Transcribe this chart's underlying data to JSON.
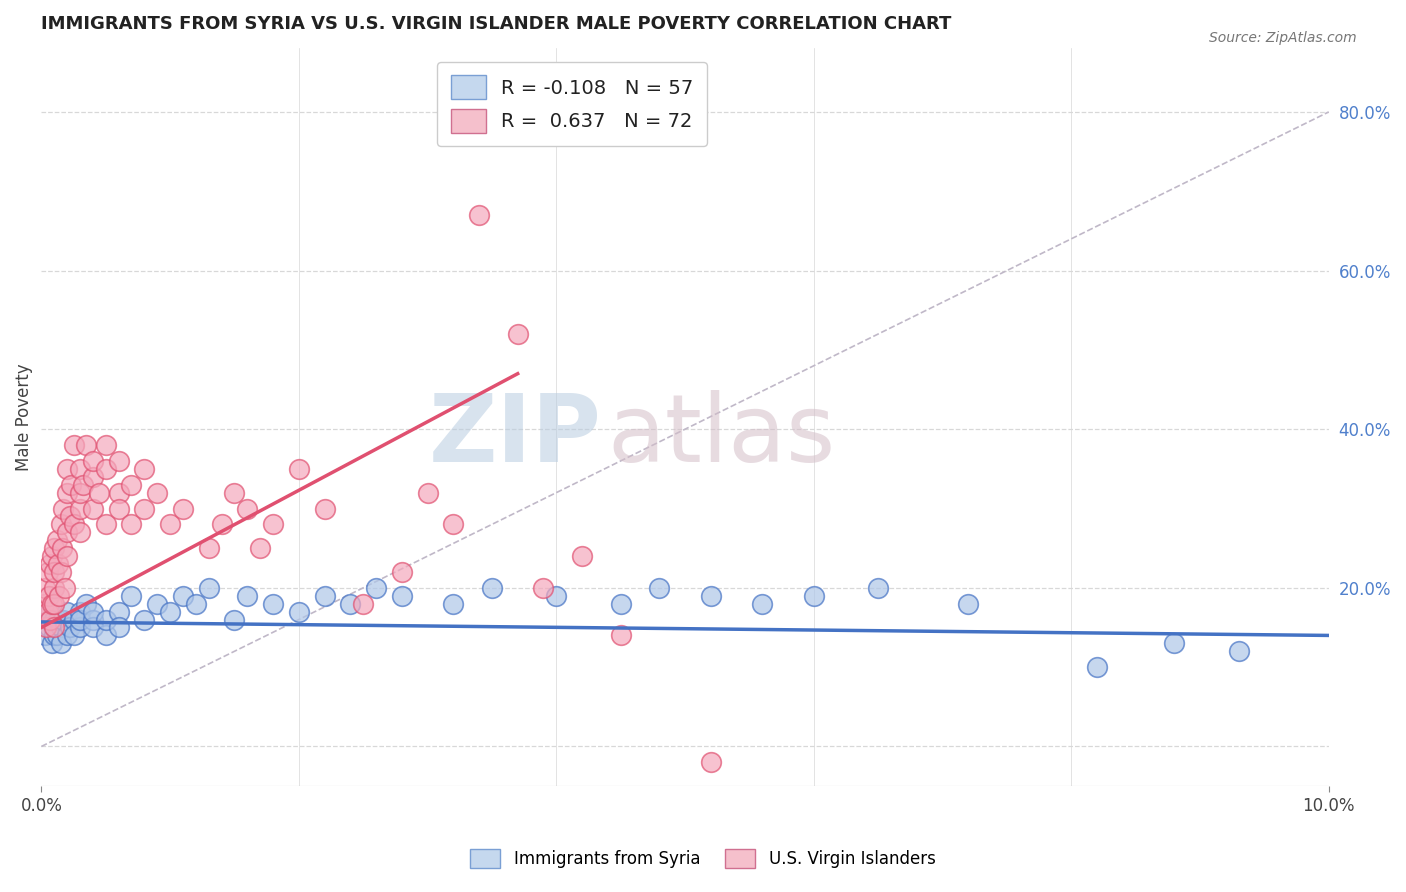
{
  "title": "IMMIGRANTS FROM SYRIA VS U.S. VIRGIN ISLANDER MALE POVERTY CORRELATION CHART",
  "source": "Source: ZipAtlas.com",
  "ylabel": "Male Poverty",
  "xlim": [
    0.0,
    0.1
  ],
  "ylim": [
    -0.05,
    0.88
  ],
  "color_blue": "#aec6e8",
  "color_pink": "#f4a8bc",
  "color_blue_line": "#4472c4",
  "color_pink_line": "#e05070",
  "color_dashed": "#c0b8c8",
  "color_grid": "#d8d8d8",
  "background_color": "#ffffff",
  "watermark_zip_color": "#c8d8e8",
  "watermark_atlas_color": "#d8c8d0",
  "right_ytick_color": "#5080cc",
  "legend_blue_r": "R = -0.108",
  "legend_blue_n": "N = 57",
  "legend_pink_r": "R =  0.637",
  "legend_pink_n": "N = 72",
  "blue_x": [
    0.0003,
    0.0005,
    0.0006,
    0.0007,
    0.0008,
    0.001,
    0.001,
    0.001,
    0.0012,
    0.0013,
    0.0015,
    0.0015,
    0.0017,
    0.002,
    0.002,
    0.0022,
    0.0025,
    0.0025,
    0.003,
    0.003,
    0.003,
    0.0035,
    0.004,
    0.004,
    0.004,
    0.005,
    0.005,
    0.006,
    0.006,
    0.007,
    0.008,
    0.009,
    0.01,
    0.011,
    0.012,
    0.013,
    0.015,
    0.016,
    0.018,
    0.02,
    0.022,
    0.024,
    0.026,
    0.028,
    0.032,
    0.035,
    0.04,
    0.045,
    0.048,
    0.052,
    0.056,
    0.06,
    0.065,
    0.072,
    0.082,
    0.088,
    0.093
  ],
  "blue_y": [
    0.14,
    0.16,
    0.15,
    0.17,
    0.13,
    0.16,
    0.14,
    0.15,
    0.14,
    0.16,
    0.15,
    0.13,
    0.16,
    0.14,
    0.17,
    0.15,
    0.16,
    0.14,
    0.15,
    0.17,
    0.16,
    0.18,
    0.16,
    0.15,
    0.17,
    0.14,
    0.16,
    0.17,
    0.15,
    0.19,
    0.16,
    0.18,
    0.17,
    0.19,
    0.18,
    0.2,
    0.16,
    0.19,
    0.18,
    0.17,
    0.19,
    0.18,
    0.2,
    0.19,
    0.18,
    0.2,
    0.19,
    0.18,
    0.2,
    0.19,
    0.18,
    0.19,
    0.2,
    0.18,
    0.1,
    0.13,
    0.12
  ],
  "pink_x": [
    0.0002,
    0.0003,
    0.0004,
    0.0005,
    0.0005,
    0.0006,
    0.0007,
    0.0007,
    0.0008,
    0.0008,
    0.001,
    0.001,
    0.001,
    0.001,
    0.001,
    0.0012,
    0.0013,
    0.0014,
    0.0015,
    0.0015,
    0.0016,
    0.0017,
    0.0018,
    0.002,
    0.002,
    0.002,
    0.002,
    0.0022,
    0.0023,
    0.0025,
    0.0025,
    0.003,
    0.003,
    0.003,
    0.003,
    0.0032,
    0.0035,
    0.004,
    0.004,
    0.004,
    0.0045,
    0.005,
    0.005,
    0.005,
    0.006,
    0.006,
    0.006,
    0.007,
    0.007,
    0.008,
    0.008,
    0.009,
    0.01,
    0.011,
    0.013,
    0.014,
    0.015,
    0.016,
    0.017,
    0.018,
    0.02,
    0.022,
    0.025,
    0.028,
    0.03,
    0.032,
    0.034,
    0.037,
    0.039,
    0.042,
    0.045,
    0.052
  ],
  "pink_y": [
    0.18,
    0.2,
    0.15,
    0.22,
    0.17,
    0.19,
    0.23,
    0.16,
    0.24,
    0.18,
    0.25,
    0.2,
    0.22,
    0.18,
    0.15,
    0.26,
    0.23,
    0.19,
    0.28,
    0.22,
    0.25,
    0.3,
    0.2,
    0.32,
    0.27,
    0.24,
    0.35,
    0.29,
    0.33,
    0.38,
    0.28,
    0.35,
    0.3,
    0.32,
    0.27,
    0.33,
    0.38,
    0.34,
    0.3,
    0.36,
    0.32,
    0.35,
    0.38,
    0.28,
    0.32,
    0.36,
    0.3,
    0.33,
    0.28,
    0.35,
    0.3,
    0.32,
    0.28,
    0.3,
    0.25,
    0.28,
    0.32,
    0.3,
    0.25,
    0.28,
    0.35,
    0.3,
    0.18,
    0.22,
    0.32,
    0.28,
    0.67,
    0.52,
    0.2,
    0.24,
    0.14,
    -0.02
  ]
}
